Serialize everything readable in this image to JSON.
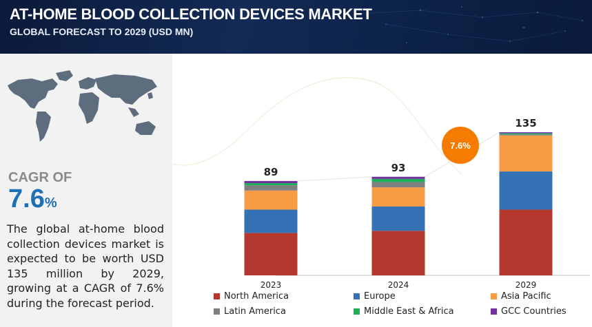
{
  "header": {
    "title": "AT-HOME BLOOD COLLECTION DEVICES MARKET",
    "subtitle": "GLOBAL FORECAST TO 2029 (USD MN)"
  },
  "left_panel": {
    "cagr_label": "CAGR OF",
    "cagr_value": "7.6",
    "cagr_unit": "%",
    "description": "The global at-home blood collection devices market is expected to be worth USD 135 million by 2029, growing at a CAGR of 7.6% during the forecast period."
  },
  "chart_data": {
    "type": "bar",
    "stacked": true,
    "categories": [
      "2023",
      "2024",
      "2029"
    ],
    "totals": [
      89,
      93,
      135
    ],
    "series": [
      {
        "name": "North America",
        "color": "#b5382e",
        "values": [
          40,
          42,
          62
        ]
      },
      {
        "name": "Europe",
        "color": "#3472b5",
        "values": [
          22,
          23,
          36
        ]
      },
      {
        "name": "Asia Pacific",
        "color": "#f79b45",
        "values": [
          18,
          18,
          34
        ]
      },
      {
        "name": "Latin America",
        "color": "#7f7f7f",
        "values": [
          5,
          5,
          1
        ]
      },
      {
        "name": "Middle East & Africa",
        "color": "#1faf5a",
        "values": [
          2,
          3,
          1
        ]
      },
      {
        "name": "GCC Countries",
        "color": "#7030a0",
        "values": [
          2,
          2,
          1
        ]
      }
    ],
    "cagr_badge": "7.6%",
    "cagr_badge_color": "#f57c00",
    "legend_position": "bottom",
    "grid": false
  }
}
